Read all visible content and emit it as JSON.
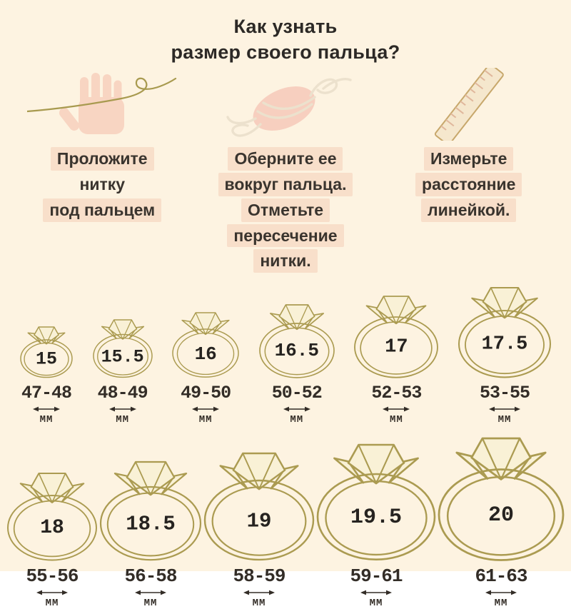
{
  "colors": {
    "background": "#fdf3e1",
    "highlight": "#f8dfca",
    "text": "#3a342e",
    "ring_gold": "#ab9b51",
    "diamond_fill": "#f9f1d6",
    "hand_pink": "#f8d5c2",
    "thread_olive": "#a89a4f",
    "thread_pale": "#ece1cd",
    "ruler_fill": "#f5e7cd",
    "ruler_tick": "#e0b79c"
  },
  "title": {
    "line1": "Как узнать",
    "line2": "размер своего пальца?"
  },
  "steps": [
    {
      "icon": "hand-with-thread-icon",
      "lines": [
        {
          "text": "Проложите",
          "hl": true
        },
        {
          "text": "нитку",
          "hl": false
        },
        {
          "text": "под пальцем",
          "hl": true
        }
      ]
    },
    {
      "icon": "finger-wrapped-thread-icon",
      "lines": [
        {
          "text": "Оберните ее",
          "hl": true
        },
        {
          "text": "вокруг пальца.",
          "hl": true
        },
        {
          "text": "Отметьте",
          "hl": true
        },
        {
          "text": "пересечение",
          "hl": true
        },
        {
          "text": "нитки.",
          "hl": true
        }
      ]
    },
    {
      "icon": "ruler-icon",
      "lines": [
        {
          "text": "Измерьте",
          "hl": true
        },
        {
          "text": "расстояние",
          "hl": true
        },
        {
          "text": "линейкой.",
          "hl": true
        }
      ]
    }
  ],
  "rings": {
    "unit": "ММ",
    "row1": [
      {
        "size": "15",
        "range": "47-48"
      },
      {
        "size": "15.5",
        "range": "48-49"
      },
      {
        "size": "16",
        "range": "49-50"
      },
      {
        "size": "16.5",
        "range": "50-52"
      },
      {
        "size": "17",
        "range": "52-53"
      },
      {
        "size": "17.5",
        "range": "53-55"
      }
    ],
    "row2": [
      {
        "size": "18",
        "range": "55-56"
      },
      {
        "size": "18.5",
        "range": "56-58"
      },
      {
        "size": "19",
        "range": "58-59"
      },
      {
        "size": "19.5",
        "range": "59-61"
      },
      {
        "size": "20",
        "range": "61-63"
      }
    ]
  }
}
